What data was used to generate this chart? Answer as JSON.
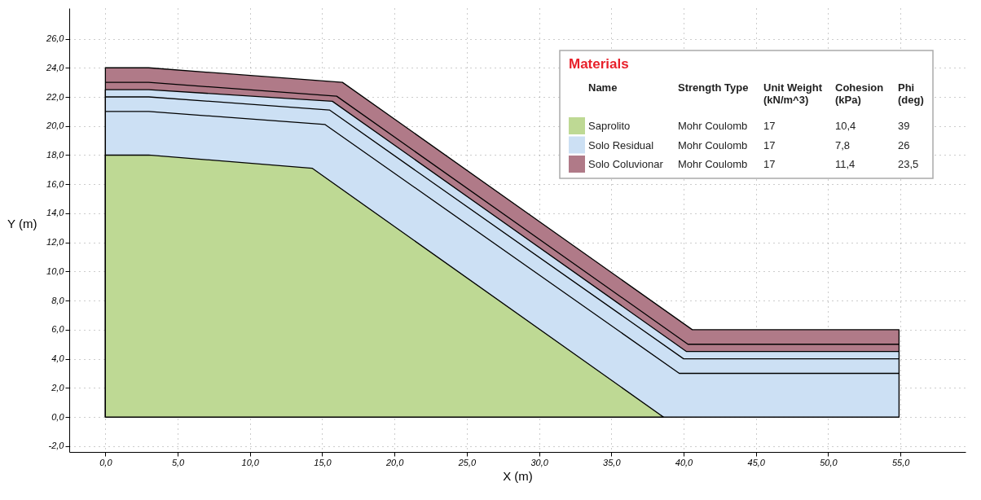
{
  "chart_data": {
    "type": "area",
    "xlabel": "X (m)",
    "ylabel": "Y (m)",
    "legend_title": "Materials",
    "legend": "top right",
    "grid": true,
    "xlim": [
      -2.5,
      59.5
    ],
    "ylim": [
      -2.4,
      28.1
    ],
    "xticks": [
      {
        "value": 0,
        "label": "0,0"
      },
      {
        "value": 5,
        "label": "5,0"
      },
      {
        "value": 10,
        "label": "10,0"
      },
      {
        "value": 15,
        "label": "15,0"
      },
      {
        "value": 20,
        "label": "20,0"
      },
      {
        "value": 25,
        "label": "25,0"
      },
      {
        "value": 30,
        "label": "30,0"
      },
      {
        "value": 35,
        "label": "35,0"
      },
      {
        "value": 40,
        "label": "40,0"
      },
      {
        "value": 45,
        "label": "45,0"
      },
      {
        "value": 50,
        "label": "50,0"
      },
      {
        "value": 55,
        "label": "55,0"
      }
    ],
    "yticks": [
      {
        "value": -2,
        "label": "-2,0"
      },
      {
        "value": 0,
        "label": "0,0"
      },
      {
        "value": 2,
        "label": "2,0"
      },
      {
        "value": 4,
        "label": "4,0"
      },
      {
        "value": 6,
        "label": "6,0"
      },
      {
        "value": 8,
        "label": "8,0"
      },
      {
        "value": 10,
        "label": "10,0"
      },
      {
        "value": 12,
        "label": "12,0"
      },
      {
        "value": 14,
        "label": "14,0"
      },
      {
        "value": 16,
        "label": "16,0"
      },
      {
        "value": 18,
        "label": "18,0"
      },
      {
        "value": 20,
        "label": "20,0"
      },
      {
        "value": 22,
        "label": "22,0"
      },
      {
        "value": 24,
        "label": "24,0"
      },
      {
        "value": 26,
        "label": "26,0"
      }
    ],
    "series": [
      {
        "name": "Saprolito",
        "type": "area",
        "color": "#bed994",
        "x": [
          0,
          3,
          14.3,
          38.6
        ],
        "values": [
          18,
          18,
          17.1,
          0
        ]
      },
      {
        "name": "Solo Residual",
        "type": "area",
        "color": "#cce0f4",
        "x": [
          0,
          3,
          15.7,
          40.2,
          54.9
        ],
        "values": [
          22.5,
          22.5,
          21.7,
          4.5,
          4.5
        ]
      },
      {
        "name": "Solo Coluvionar",
        "type": "area",
        "color": "#b07a88",
        "x": [
          0,
          3,
          16.4,
          40.6,
          54.9
        ],
        "values": [
          24,
          24,
          23.0,
          6.0,
          6.0
        ]
      },
      {
        "type": "line",
        "color": "#000000",
        "x": [
          0,
          3,
          16.0,
          40.3,
          54.9
        ],
        "values": [
          23,
          23,
          22.05,
          5.0,
          5.0
        ]
      },
      {
        "type": "line",
        "color": "#000000",
        "x": [
          0,
          3,
          15.5,
          40.0,
          54.9
        ],
        "values": [
          22,
          22,
          21.1,
          4.0,
          4.0
        ]
      },
      {
        "type": "line",
        "color": "#000000",
        "x": [
          0,
          3,
          15.2,
          39.7,
          54.9
        ],
        "values": [
          21,
          21,
          20.1,
          3.0,
          3.0
        ]
      }
    ],
    "annotations": [
      "Name",
      "Strength Type",
      "Unit Weight\n(kN/m^3)",
      "Cohesion\n(kPa)",
      "Phi\n(deg)",
      "Mohr Coulomb",
      "17",
      "10,4",
      "39",
      "Mohr Coulomb",
      "17",
      "7,8",
      "26",
      "Mohr Coulomb",
      "17",
      "11,4",
      "23,5"
    ]
  }
}
